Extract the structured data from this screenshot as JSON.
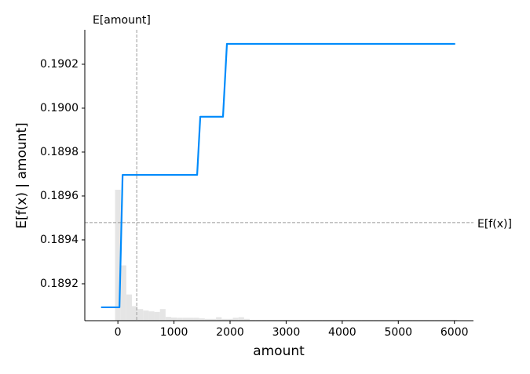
{
  "chart_data": {
    "type": "line",
    "xlabel": "amount",
    "ylabel": "E[f(x) | amount]",
    "xlim": [
      -590,
      6340
    ],
    "ylim": [
      0.189032,
      0.190357
    ],
    "xticks": [
      0,
      1000,
      2000,
      3000,
      4000,
      5000,
      6000
    ],
    "yticks": [
      0.1892,
      0.1894,
      0.1896,
      0.1898,
      {
        "value": 0.19,
        "label": "0.1900"
      },
      0.1902
    ],
    "series": [
      {
        "color": "#008bfb",
        "x": [
          -300,
          28,
          84,
          1413,
          1469,
          1874,
          1944,
          6014
        ],
        "values": [
          0.189093,
          0.189093,
          0.189696,
          0.189696,
          0.189961,
          0.189961,
          0.190293,
          0.190293
        ]
      }
    ],
    "histogram": {
      "color": "#e5e5e5",
      "y2lim": [
        0,
        100
      ],
      "bins": [
        -50,
        50,
        150,
        250,
        350,
        450,
        550,
        650,
        750,
        850,
        950,
        1050,
        1150,
        1250,
        1350,
        1450,
        1550,
        1650,
        1750,
        1850,
        1950,
        2050,
        2150,
        2250,
        2350,
        2450,
        2550,
        2650,
        2750,
        2850,
        2950,
        3050,
        3150,
        3250,
        3350,
        3450,
        3550,
        3650,
        3750,
        3850,
        3950,
        4050,
        4150,
        4250,
        4350,
        4450,
        4550,
        4650,
        4750,
        4850,
        4950,
        5050,
        5150,
        5250,
        5350,
        5450,
        5550,
        5650,
        5750,
        5850,
        5950,
        6050
      ],
      "counts": [
        45,
        19,
        9,
        5,
        4,
        3.5,
        3.2,
        3,
        4,
        1.3,
        1.1,
        1,
        1,
        1,
        1,
        0.8,
        0.6,
        0.6,
        1.2,
        0.6,
        0.6,
        1,
        1.2,
        0.6,
        0.3,
        0.3,
        0.3,
        0.3,
        0.3,
        0.3,
        0.3,
        0.3,
        0.3,
        0.3,
        0.3,
        0.3,
        0.3,
        0.3,
        0.3,
        0.3,
        0.3,
        0.3,
        0.3,
        0.3,
        0.3,
        0.3,
        0.3,
        0.3,
        0.3,
        0.3,
        0.3,
        0.3,
        0.3,
        0.3,
        0.3,
        0.3,
        0.3,
        0.3,
        0.3,
        0.3,
        0.3
      ]
    },
    "hline": {
      "value": 0.189479,
      "label": "E[f(x)]"
    },
    "vline": {
      "value": 336,
      "label": "E[amount]"
    }
  }
}
